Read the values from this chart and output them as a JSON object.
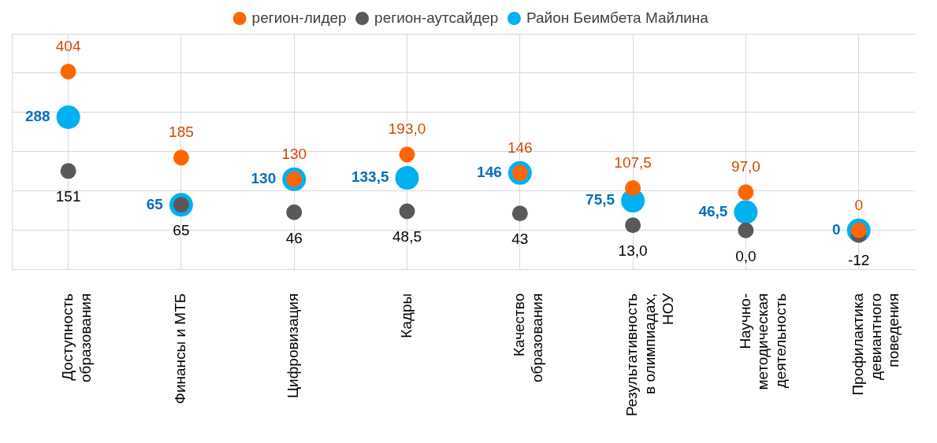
{
  "chart_data": {
    "type": "scatter",
    "categories": [
      "Доступность образования",
      "Финансы и МТБ",
      "Цифровизация",
      "Кадры",
      "Качество образования",
      "Результативность в олимпиадах, НОУ",
      "Научно-методическая деятельность",
      "Профилактика девиантного поведения"
    ],
    "series": [
      {
        "name": "Район Беимбета Майлина",
        "color": "#00b0f0",
        "values": [
          288,
          65,
          130,
          133.5,
          146,
          75.5,
          46.5,
          0
        ],
        "value_labels": [
          "288",
          "65",
          "130",
          "133,5",
          "146",
          "75,5",
          "46,5",
          "0"
        ]
      },
      {
        "name": "регион-аутсайдер",
        "color": "#595959",
        "values": [
          151,
          65,
          46,
          48.5,
          43,
          13,
          0,
          -12
        ],
        "value_labels": [
          "151",
          "65",
          "46",
          "48,5",
          "43",
          "13,0",
          "0,0",
          "-12"
        ]
      },
      {
        "name": "регион-лидер",
        "color": "#ff6600",
        "values": [
          404,
          185,
          130,
          193,
          146,
          107.5,
          97,
          0
        ],
        "value_labels": [
          "404",
          "185",
          "130",
          "193,0",
          "146",
          "107,5",
          "97,0",
          "0"
        ]
      }
    ],
    "ylim": [
      -100,
      500
    ],
    "yticks": [
      {
        "value": -100,
        "label": null
      },
      {
        "value": 0,
        "label": null
      },
      {
        "value": 100,
        "label": null
      },
      {
        "value": 200,
        "label": null
      },
      {
        "value": 300,
        "label": null
      },
      {
        "value": 400,
        "label": null
      },
      {
        "value": 500,
        "label": null
      }
    ],
    "tick_labels": "x",
    "grid": true,
    "legend": "top",
    "marker": "circle"
  }
}
